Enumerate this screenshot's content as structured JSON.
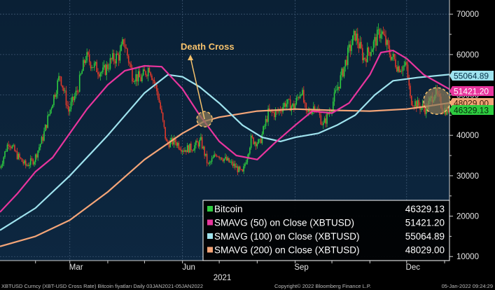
{
  "chart_data": {
    "type": "line",
    "x_ticks": [
      {
        "label": "Mar",
        "date": "2021-03-01"
      },
      {
        "label": "Jun",
        "date": "2021-06-01"
      },
      {
        "label": "Sep",
        "date": "2021-09-01"
      },
      {
        "label": "Dec",
        "date": "2021-12-01"
      }
    ],
    "x_year_label": "2021",
    "xlim": [
      "2021-01-03",
      "2022-01-05"
    ],
    "ylim": [
      9000,
      73500
    ],
    "y_ticks": [
      10000,
      20000,
      30000,
      40000,
      50000,
      60000,
      70000
    ],
    "y_tick_labels": [
      "10000",
      "20000",
      "30000",
      "40000",
      "50000",
      "60000",
      "70000"
    ],
    "grid": true,
    "legend_position": "bottom-right",
    "annotation": {
      "text": "Death Cross",
      "date": "2021-06-19",
      "value": 44000
    },
    "series": [
      {
        "key": "btc",
        "name": "Bitcoin",
        "value_label": "46329.13",
        "last_value": 46329.13,
        "color": "#2ecc40",
        "style": "candles",
        "points": [
          [
            "2021-01-03",
            32000
          ],
          [
            "2021-01-10",
            38500
          ],
          [
            "2021-01-17",
            35000
          ],
          [
            "2021-01-24",
            32500
          ],
          [
            "2021-01-31",
            34000
          ],
          [
            "2021-02-07",
            39500
          ],
          [
            "2021-02-14",
            47500
          ],
          [
            "2021-02-21",
            55000
          ],
          [
            "2021-02-28",
            46000
          ],
          [
            "2021-03-07",
            51000
          ],
          [
            "2021-03-14",
            59500
          ],
          [
            "2021-03-21",
            57000
          ],
          [
            "2021-03-28",
            55500
          ],
          [
            "2021-04-04",
            58500
          ],
          [
            "2021-04-11",
            60000
          ],
          [
            "2021-04-14",
            63500
          ],
          [
            "2021-04-21",
            55000
          ],
          [
            "2021-04-28",
            54000
          ],
          [
            "2021-05-05",
            57000
          ],
          [
            "2021-05-12",
            50000
          ],
          [
            "2021-05-19",
            38000
          ],
          [
            "2021-05-26",
            38500
          ],
          [
            "2021-06-02",
            36500
          ],
          [
            "2021-06-09",
            37000
          ],
          [
            "2021-06-16",
            38500
          ],
          [
            "2021-06-22",
            32500
          ],
          [
            "2021-06-29",
            35500
          ],
          [
            "2021-07-06",
            34000
          ],
          [
            "2021-07-13",
            32500
          ],
          [
            "2021-07-20",
            30500
          ],
          [
            "2021-07-27",
            39000
          ],
          [
            "2021-08-03",
            38000
          ],
          [
            "2021-08-10",
            45500
          ],
          [
            "2021-08-17",
            45500
          ],
          [
            "2021-08-24",
            48000
          ],
          [
            "2021-08-31",
            47000
          ],
          [
            "2021-09-06",
            51500
          ],
          [
            "2021-09-10",
            45000
          ],
          [
            "2021-09-17",
            47500
          ],
          [
            "2021-09-24",
            42500
          ],
          [
            "2021-10-01",
            47500
          ],
          [
            "2021-10-08",
            54000
          ],
          [
            "2021-10-15",
            61000
          ],
          [
            "2021-10-20",
            65000
          ],
          [
            "2021-10-27",
            59000
          ],
          [
            "2021-11-03",
            62000
          ],
          [
            "2021-11-10",
            66000
          ],
          [
            "2021-11-17",
            60500
          ],
          [
            "2021-11-24",
            57000
          ],
          [
            "2021-12-01",
            57000
          ],
          [
            "2021-12-04",
            49000
          ],
          [
            "2021-12-10",
            47500
          ],
          [
            "2021-12-17",
            46500
          ],
          [
            "2021-12-24",
            50800
          ],
          [
            "2021-12-31",
            46500
          ],
          [
            "2022-01-05",
            46329.13
          ]
        ]
      },
      {
        "key": "ma50",
        "name": "SMAVG (50)  on Close (XBTUSD)",
        "value_label": "51421.20",
        "last_value": 51421.2,
        "color": "#e8359d",
        "points": [
          [
            "2021-01-03",
            21000
          ],
          [
            "2021-01-17",
            25500
          ],
          [
            "2021-02-01",
            31000
          ],
          [
            "2021-02-15",
            34500
          ],
          [
            "2021-03-01",
            40500
          ],
          [
            "2021-03-15",
            46500
          ],
          [
            "2021-04-01",
            52500
          ],
          [
            "2021-04-15",
            56000
          ],
          [
            "2021-05-01",
            57200
          ],
          [
            "2021-05-15",
            57000
          ],
          [
            "2021-06-01",
            51500
          ],
          [
            "2021-06-15",
            45000
          ],
          [
            "2021-07-01",
            38500
          ],
          [
            "2021-07-15",
            35000
          ],
          [
            "2021-08-01",
            34000
          ],
          [
            "2021-08-15",
            38000
          ],
          [
            "2021-09-01",
            42500
          ],
          [
            "2021-09-15",
            46000
          ],
          [
            "2021-10-01",
            45500
          ],
          [
            "2021-10-15",
            48000
          ],
          [
            "2021-11-01",
            55000
          ],
          [
            "2021-11-10",
            60500
          ],
          [
            "2021-11-20",
            61000
          ],
          [
            "2021-12-01",
            59000
          ],
          [
            "2021-12-15",
            55000
          ],
          [
            "2022-01-05",
            51421.2
          ]
        ]
      },
      {
        "key": "ma100",
        "name": "SMAVG (100)  on Close (XBTUSD)",
        "value_label": "55064.89",
        "last_value": 55064.89,
        "color": "#9fe3ee",
        "points": [
          [
            "2021-01-03",
            16500
          ],
          [
            "2021-02-01",
            22000
          ],
          [
            "2021-03-01",
            30000
          ],
          [
            "2021-04-01",
            40000
          ],
          [
            "2021-05-01",
            50500
          ],
          [
            "2021-05-20",
            55000
          ],
          [
            "2021-06-01",
            54500
          ],
          [
            "2021-06-15",
            52000
          ],
          [
            "2021-07-01",
            48000
          ],
          [
            "2021-07-20",
            42500
          ],
          [
            "2021-08-05",
            39500
          ],
          [
            "2021-08-20",
            38500
          ],
          [
            "2021-09-01",
            39500
          ],
          [
            "2021-09-20",
            40500
          ],
          [
            "2021-10-05",
            42500
          ],
          [
            "2021-10-20",
            45000
          ],
          [
            "2021-11-05",
            50000
          ],
          [
            "2021-11-20",
            53500
          ],
          [
            "2021-12-10",
            54300
          ],
          [
            "2022-01-05",
            55064.89
          ]
        ]
      },
      {
        "key": "ma200",
        "name": "SMAVG (200)  on Close (XBTUSD)",
        "value_label": "48029.00",
        "last_value": 48029.0,
        "color": "#f4a578",
        "points": [
          [
            "2021-01-03",
            12500
          ],
          [
            "2021-02-01",
            15000
          ],
          [
            "2021-03-01",
            19000
          ],
          [
            "2021-04-01",
            26000
          ],
          [
            "2021-05-01",
            34000
          ],
          [
            "2021-06-01",
            40500
          ],
          [
            "2021-06-19",
            43500
          ],
          [
            "2021-07-01",
            44500
          ],
          [
            "2021-08-01",
            46000
          ],
          [
            "2021-09-01",
            46500
          ],
          [
            "2021-10-01",
            46200
          ],
          [
            "2021-11-01",
            46000
          ],
          [
            "2021-12-01",
            46500
          ],
          [
            "2021-12-20",
            47300
          ],
          [
            "2022-01-05",
            48029.0
          ]
        ]
      }
    ]
  },
  "footer": {
    "left": "XBTUSD Curncy (XBT-USD Cross Rate) Bitcoin fiyatları  Daily 03JAN2021-05JAN2022",
    "center": "Copyright© 2022 Bloomberg Finance L.P.",
    "right": "05-Jan-2022 09:24:29"
  }
}
